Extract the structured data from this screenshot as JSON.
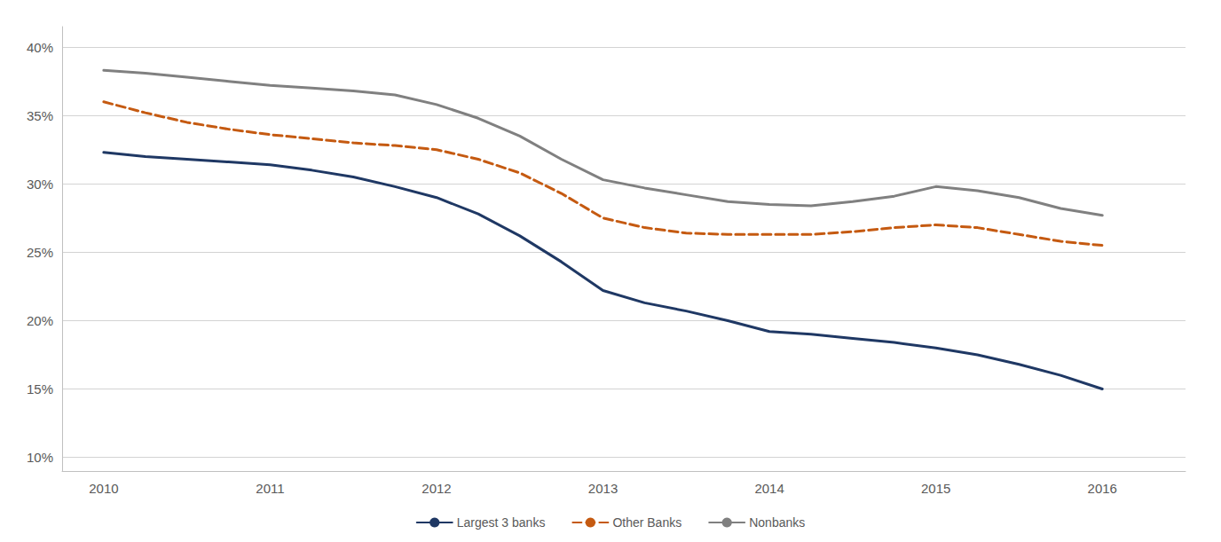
{
  "chart_data": {
    "type": "line",
    "x": [
      2010,
      2010.25,
      2010.5,
      2010.75,
      2011,
      2011.25,
      2011.5,
      2011.75,
      2012,
      2012.25,
      2012.5,
      2012.75,
      2013,
      2013.25,
      2013.5,
      2013.75,
      2014,
      2014.25,
      2014.5,
      2014.75,
      2015,
      2015.25,
      2015.5,
      2015.75,
      2016
    ],
    "series": [
      {
        "name": "Largest 3 banks",
        "color": "#1f3864",
        "line_style": "solid",
        "values": [
          0.323,
          0.32,
          0.318,
          0.316,
          0.314,
          0.31,
          0.305,
          0.298,
          0.29,
          0.278,
          0.262,
          0.243,
          0.222,
          0.213,
          0.207,
          0.2,
          0.192,
          0.19,
          0.187,
          0.184,
          0.18,
          0.175,
          0.168,
          0.16,
          0.15
        ]
      },
      {
        "name": "Other Banks",
        "color": "#c55a11",
        "line_style": "dashed",
        "values": [
          0.36,
          0.352,
          0.345,
          0.34,
          0.336,
          0.333,
          0.33,
          0.328,
          0.325,
          0.318,
          0.308,
          0.293,
          0.275,
          0.268,
          0.264,
          0.263,
          0.263,
          0.263,
          0.265,
          0.268,
          0.27,
          0.268,
          0.263,
          0.258,
          0.255
        ]
      },
      {
        "name": "Nonbanks",
        "color": "#808080",
        "line_style": "solid",
        "values": [
          0.383,
          0.381,
          0.378,
          0.375,
          0.372,
          0.37,
          0.368,
          0.365,
          0.358,
          0.348,
          0.335,
          0.318,
          0.303,
          0.297,
          0.292,
          0.287,
          0.285,
          0.284,
          0.287,
          0.291,
          0.298,
          0.295,
          0.29,
          0.282,
          0.277
        ]
      }
    ],
    "xlim": [
      2009.75,
      2016.5
    ],
    "xticks": [
      2010,
      2011,
      2012,
      2013,
      2014,
      2015,
      2016
    ],
    "ylim": [
      0.09,
      0.415
    ],
    "yticks": [
      {
        "value": 0.1,
        "label": "10%"
      },
      {
        "value": 0.15,
        "label": "15%"
      },
      {
        "value": 0.2,
        "label": "20%"
      },
      {
        "value": 0.25,
        "label": "25%"
      },
      {
        "value": 0.3,
        "label": "30%"
      },
      {
        "value": 0.35,
        "label": "35%"
      },
      {
        "value": 0.4,
        "label": "40%"
      }
    ],
    "grid": true,
    "legend": "bottom"
  }
}
